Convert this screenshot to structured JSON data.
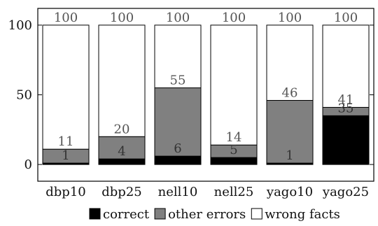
{
  "chart_data": {
    "type": "bar",
    "stacked": true,
    "categories": [
      "dbp10",
      "dbp25",
      "nell10",
      "nell25",
      "yago10",
      "yago25"
    ],
    "series": [
      {
        "name": "correct",
        "values": [
          1,
          4,
          6,
          5,
          1,
          35
        ],
        "color": "#000000"
      },
      {
        "name": "other errors",
        "values": [
          10,
          16,
          49,
          9,
          45,
          6
        ],
        "color": "#808080"
      },
      {
        "name": "wrong facts",
        "values": [
          89,
          80,
          45,
          86,
          54,
          59
        ],
        "color": "#ffffff"
      }
    ],
    "labels": {
      "correct": [
        "1",
        "4",
        "6",
        "5",
        "1",
        "35"
      ],
      "cumulative_errors": [
        "11",
        "20",
        "55",
        "14",
        "46",
        "41"
      ],
      "total": [
        "100",
        "100",
        "100",
        "100",
        "100",
        "100"
      ]
    },
    "y_ticks": [
      0,
      50,
      100
    ],
    "ylim": [
      -12,
      112
    ],
    "legend_position": "bottom",
    "grid": false
  }
}
